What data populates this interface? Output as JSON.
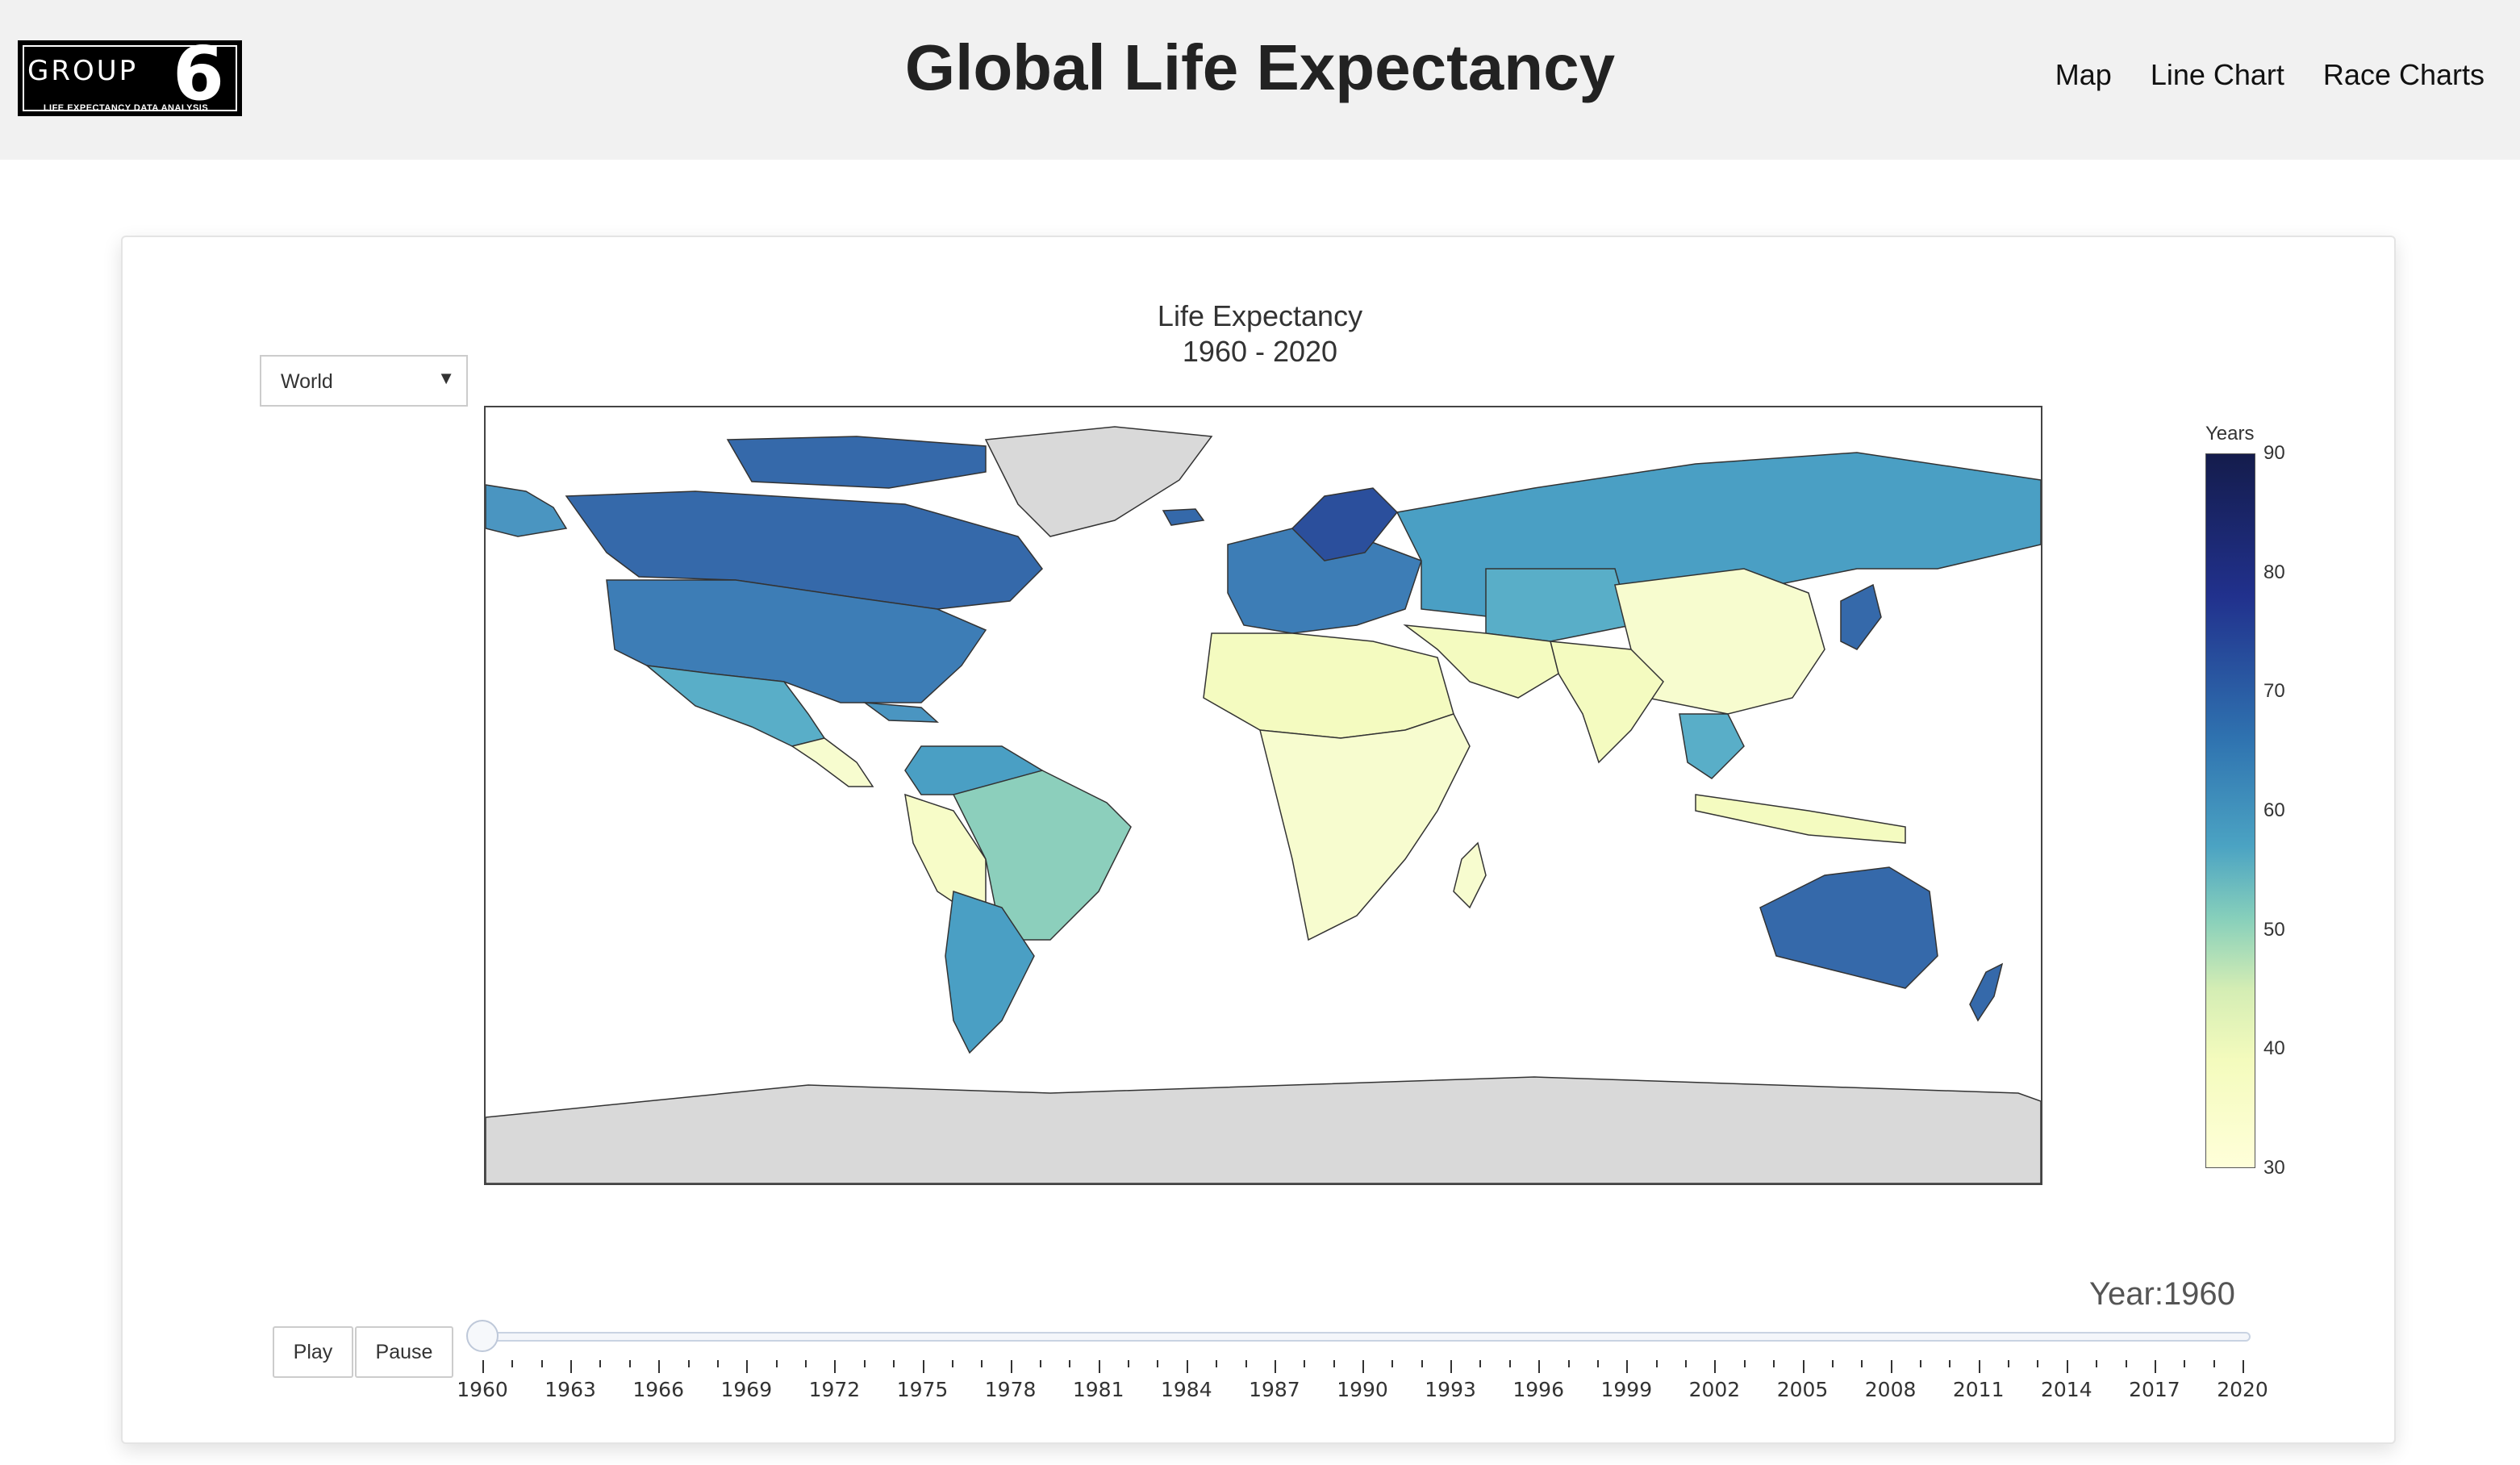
{
  "logo": {
    "text": "GROUP",
    "number": "6",
    "subtitle": "LIFE EXPECTANCY DATA ANALYSIS"
  },
  "site_title": "Global Life Expectancy",
  "nav": [
    {
      "label": "Map"
    },
    {
      "label": "Line Chart"
    },
    {
      "label": "Race Charts"
    }
  ],
  "region_select": {
    "value": "World"
  },
  "chart_data": {
    "type": "choropleth",
    "title": "Life Expectancy",
    "subtitle": "1960 - 2020",
    "colorbar": {
      "title": "Years",
      "range": [
        30,
        90
      ],
      "ticks": [
        "90",
        "80",
        "70",
        "60",
        "50",
        "40",
        "30"
      ],
      "colorscale": "YlGnBu"
    },
    "year": 1960,
    "colors": {
      "no_data": "#d9d9d9",
      "border": "#333333"
    }
  },
  "player": {
    "play_label": "Play",
    "pause_label": "Pause",
    "current_label": "Year:1960"
  },
  "slider": {
    "value": 1960,
    "min": 1960,
    "max": 2020,
    "labels": [
      "1960",
      "1963",
      "1966",
      "1969",
      "1972",
      "1975",
      "1978",
      "1981",
      "1984",
      "1987",
      "1990",
      "1993",
      "1996",
      "1999",
      "2002",
      "2005",
      "2008",
      "2011",
      "2014",
      "2017",
      "2020"
    ]
  }
}
